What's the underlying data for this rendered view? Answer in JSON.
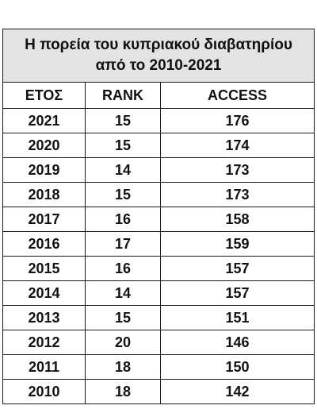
{
  "title": {
    "line1": "Η πορεία του κυπριακού διαβατηρίου",
    "line2": "από το 2010-2021"
  },
  "columns": [
    "ΕΤΟΣ",
    "RANK",
    "ACCESS"
  ],
  "rows": [
    {
      "year": "2021",
      "rank": "15",
      "access": "176"
    },
    {
      "year": "2020",
      "rank": "15",
      "access": "174"
    },
    {
      "year": "2019",
      "rank": "14",
      "access": "173"
    },
    {
      "year": "2018",
      "rank": "15",
      "access": "173"
    },
    {
      "year": "2017",
      "rank": "16",
      "access": "158"
    },
    {
      "year": "2016",
      "rank": "17",
      "access": "159"
    },
    {
      "year": "2015",
      "rank": "16",
      "access": "157"
    },
    {
      "year": "2014",
      "rank": "14",
      "access": "157"
    },
    {
      "year": "2013",
      "rank": "15",
      "access": "151"
    },
    {
      "year": "2012",
      "rank": "20",
      "access": "146"
    },
    {
      "year": "2011",
      "rank": "18",
      "access": "150"
    },
    {
      "year": "2010",
      "rank": "18",
      "access": "142"
    }
  ],
  "colors": {
    "title_background": "#e3e3e3",
    "border": "#1a1a1a",
    "text": "#111111"
  }
}
